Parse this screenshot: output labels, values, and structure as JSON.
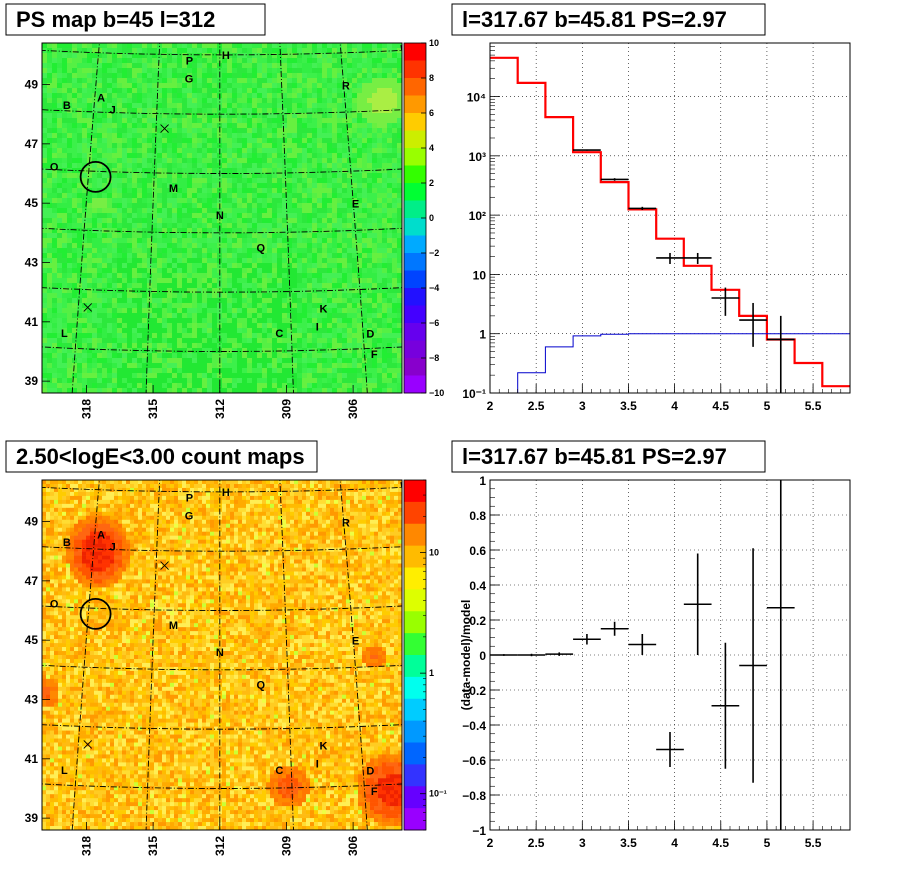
{
  "panels": {
    "ps_map": {
      "title": "PS map b=45 l=312",
      "colorbar_ticks": [
        "10",
        "8",
        "6",
        "4",
        "2",
        "0",
        "−2",
        "−4",
        "−6",
        "−8",
        "−10"
      ],
      "colorbar_colors": [
        "#ff0000",
        "#ff3300",
        "#ff6600",
        "#ff9900",
        "#ffcc00",
        "#ccee00",
        "#99ff00",
        "#33ff00",
        "#00ff33",
        "#00ee88",
        "#00ddcc",
        "#00aaff",
        "#0077ff",
        "#0044ff",
        "#2211ff",
        "#4400ff",
        "#6600ee",
        "#7700dd",
        "#8800cc",
        "#9900ff"
      ],
      "base_color": "#33ee44",
      "y_ticks": [
        "49",
        "47",
        "45",
        "43",
        "41",
        "39"
      ],
      "x_ticks": [
        "318",
        "315",
        "312",
        "309",
        "306"
      ]
    },
    "count_map": {
      "title": "2.50<logE<3.00 count maps",
      "colorbar_ticks": [
        "10",
        "1",
        "10⁻¹"
      ],
      "colorbar_colors": [
        "#ff0000",
        "#ff4400",
        "#ff8800",
        "#ffbb00",
        "#ffee00",
        "#ddff00",
        "#99ff00",
        "#33ff33",
        "#00ff99",
        "#00ffee",
        "#00ccff",
        "#0099ff",
        "#0066ff",
        "#3333ff",
        "#6600ff",
        "#9900ff"
      ],
      "y_ticks": [
        "49",
        "47",
        "45",
        "43",
        "41",
        "39"
      ],
      "x_ticks": [
        "318",
        "315",
        "312",
        "309",
        "306"
      ]
    },
    "spectrum": {
      "title": "l=317.67 b=45.81 PS=2.97",
      "y_ticks": [
        "10⁴",
        "10³",
        "10²",
        "10",
        "1",
        "10⁻¹"
      ],
      "x_ticks": [
        "2",
        "2.5",
        "3",
        "3.5",
        "4",
        "4.5",
        "5",
        "5.5"
      ]
    },
    "residual": {
      "title": "l=317.67 b=45.81 PS=2.97",
      "ylabel": "(data-model)/model",
      "y_ticks": [
        "1",
        "0.8",
        "0.6",
        "0.4",
        "0.2",
        "0",
        "−0.2",
        "−0.4",
        "−0.6",
        "−0.8",
        "−1"
      ],
      "x_ticks": [
        "2",
        "2.5",
        "3",
        "3.5",
        "4",
        "4.5",
        "5",
        "5.5"
      ]
    }
  },
  "sources": [
    {
      "label": "P",
      "l": 313.5,
      "b": 49.8
    },
    {
      "label": "H",
      "l": 311.7,
      "b": 50.0
    },
    {
      "label": "G",
      "l": 313.5,
      "b": 49.2
    },
    {
      "label": "R",
      "l": 305.9,
      "b": 48.9
    },
    {
      "label": "A",
      "l": 317.7,
      "b": 48.5
    },
    {
      "label": "B",
      "l": 319.3,
      "b": 48.2
    },
    {
      "label": "J",
      "l": 317.1,
      "b": 48.1
    },
    {
      "label": "O",
      "l": 319.6,
      "b": 46.1
    },
    {
      "label": "M",
      "l": 314.1,
      "b": 45.5
    },
    {
      "label": "E",
      "l": 305.9,
      "b": 44.9
    },
    {
      "label": "N",
      "l": 312.0,
      "b": 44.6
    },
    {
      "label": "Q",
      "l": 310.2,
      "b": 43.5
    },
    {
      "label": "K",
      "l": 307.6,
      "b": 41.4
    },
    {
      "label": "I",
      "l": 307.9,
      "b": 40.8
    },
    {
      "label": "C",
      "l": 309.5,
      "b": 40.6
    },
    {
      "label": "D",
      "l": 305.7,
      "b": 40.5
    },
    {
      "label": "L",
      "l": 318.5,
      "b": 40.5
    },
    {
      "label": "F",
      "l": 305.6,
      "b": 39.8
    }
  ],
  "markers": [
    {
      "type": "x",
      "l": 314.6,
      "b": 47.5
    },
    {
      "type": "x",
      "l": 317.6,
      "b": 41.4
    },
    {
      "type": "circle",
      "l": 317.67,
      "b": 45.81
    }
  ],
  "chart_data": [
    {
      "type": "heatmap",
      "title": "PS map b=45 l=312",
      "xlabel": "",
      "ylabel": "",
      "xlim": [
        320.0,
        303.8
      ],
      "ylim": [
        38.6,
        50.4
      ],
      "zlim": [
        -10,
        10
      ],
      "description_values": "mostly near 0 (green) with slight positive patches near R and between J and O"
    },
    {
      "type": "heatmap",
      "title": "2.50<logE<3.00 count maps",
      "xlabel": "",
      "ylabel": "",
      "xlim": [
        320.0,
        303.8
      ],
      "ylim": [
        38.6,
        50.4
      ],
      "zscale": "log",
      "zlim": [
        0.05,
        40
      ]
    },
    {
      "type": "line",
      "title": "l=317.67 b=45.81 PS=2.97",
      "xlabel": "",
      "ylabel": "",
      "xlim": [
        2.0,
        5.9
      ],
      "ylim": [
        0.1,
        80000
      ],
      "yscale": "log",
      "series": [
        {
          "name": "",
          "color": "#ff0000",
          "style": "step",
          "edges": [
            2.0,
            2.3,
            2.6,
            2.9,
            3.2,
            3.5,
            3.8,
            4.1,
            4.4,
            4.7,
            5.0,
            5.3,
            5.6,
            5.9
          ],
          "values": [
            45000,
            17000,
            4500,
            1150,
            360,
            125,
            40,
            14,
            5.5,
            2.0,
            0.8,
            0.32,
            0.13
          ]
        },
        {
          "name": "",
          "color": "#0000cc",
          "style": "step",
          "edges": [
            2.0,
            2.3,
            2.6,
            2.9,
            3.2,
            3.5,
            3.8,
            4.1,
            4.4,
            4.7,
            5.0,
            5.3,
            5.6,
            5.9
          ],
          "values": [
            0.1,
            0.22,
            0.6,
            0.92,
            0.98,
            1.0,
            1.0,
            1.0,
            1.0,
            1.0,
            1.0,
            1.0,
            1.0
          ]
        },
        {
          "name": "",
          "color": "#000000",
          "style": "errorbar",
          "x": [
            3.05,
            3.35,
            3.65,
            3.95,
            4.25,
            4.55,
            4.85,
            5.15
          ],
          "xerr": 0.15,
          "y": [
            1250,
            400,
            130,
            19,
            19,
            4.0,
            1.7,
            0.8
          ],
          "yerr_low": [
            30,
            20,
            8,
            4,
            4,
            2.0,
            1.1,
            0.8
          ],
          "yerr_high": [
            30,
            20,
            8,
            4,
            4,
            2.0,
            1.6,
            1.2
          ]
        }
      ]
    },
    {
      "type": "scatter",
      "title": "l=317.67 b=45.81 PS=2.97",
      "xlabel": "",
      "ylabel": "(data-model)/model",
      "xlim": [
        2.0,
        5.9
      ],
      "ylim": [
        -1,
        1
      ],
      "series": [
        {
          "name": "",
          "color": "#000000",
          "style": "errorbar",
          "x": [
            2.15,
            2.45,
            2.75,
            3.05,
            3.35,
            3.65,
            3.95,
            4.25,
            4.55,
            4.85,
            5.15
          ],
          "xerr": 0.15,
          "y": [
            0.0,
            0.0,
            0.005,
            0.09,
            0.15,
            0.06,
            -0.54,
            0.29,
            -0.29,
            -0.06,
            0.27
          ],
          "yerr": [
            0.005,
            0.007,
            0.01,
            0.03,
            0.04,
            0.06,
            0.1,
            0.29,
            0.36,
            0.67,
            1.4
          ]
        }
      ]
    }
  ]
}
